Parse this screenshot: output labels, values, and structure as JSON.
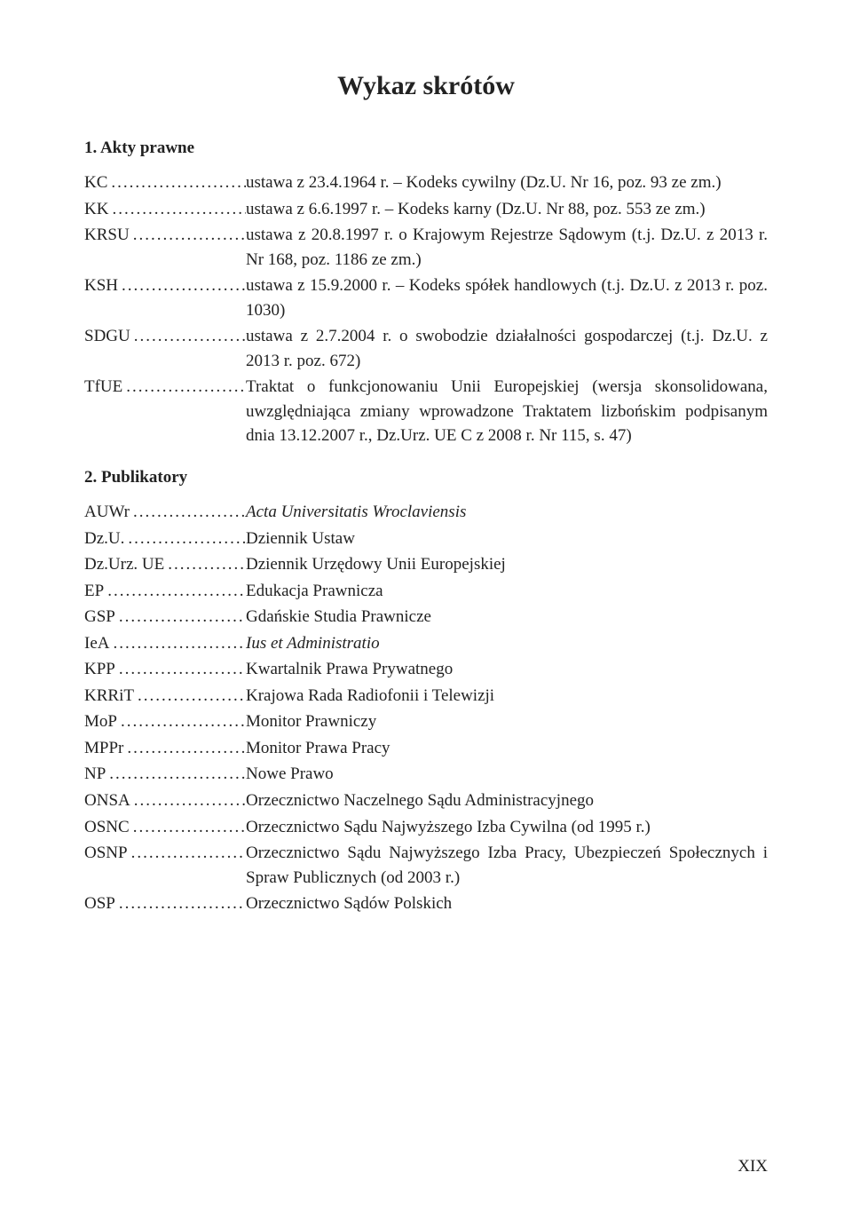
{
  "title": "Wykaz skrótów",
  "sections": [
    {
      "heading": "1. Akty prawne",
      "entries": [
        {
          "abbr": "KC",
          "def": "ustawa z 23.4.1964 r. – Kodeks cywilny (Dz.U. Nr 16, poz. 93 ze zm.)"
        },
        {
          "abbr": "KK",
          "def": "ustawa z 6.6.1997 r. – Kodeks karny (Dz.U. Nr 88, poz. 553 ze zm.)"
        },
        {
          "abbr": "KRSU",
          "def": "ustawa z 20.8.1997 r. o Krajowym Rejestrze Sądowym (t.j. Dz.U. z 2013 r. Nr 168, poz. 1186 ze zm.)"
        },
        {
          "abbr": "KSH",
          "def": "ustawa z 15.9.2000 r. – Kodeks spółek handlowych (t.j. Dz.U. z 2013 r. poz. 1030)"
        },
        {
          "abbr": "SDGU",
          "def": "ustawa z 2.7.2004 r. o swobodzie działalności gospodarczej (t.j. Dz.U. z 2013 r. poz. 672)"
        },
        {
          "abbr": "TfUE",
          "def": "Traktat o funkcjonowaniu Unii Europejskiej (wersja skonsolidowana, uwzględniająca zmiany wprowadzone Traktatem lizbońskim podpisanym dnia 13.12.2007 r., Dz.Urz. UE C z 2008 r. Nr 115, s. 47)"
        }
      ]
    },
    {
      "heading": "2. Publikatory",
      "entries": [
        {
          "abbr": "AUWr",
          "def": "Acta Universitatis Wroclaviensis",
          "italic": true
        },
        {
          "abbr": "Dz.U.",
          "def": "Dziennik Ustaw"
        },
        {
          "abbr": "Dz.Urz. UE",
          "def": "Dziennik Urzędowy Unii Europejskiej"
        },
        {
          "abbr": "EP",
          "def": "Edukacja Prawnicza"
        },
        {
          "abbr": "GSP",
          "def": "Gdańskie Studia Prawnicze"
        },
        {
          "abbr": "IeA",
          "def": "Ius et Administratio",
          "italic": true
        },
        {
          "abbr": "KPP",
          "def": "Kwartalnik Prawa Prywatnego"
        },
        {
          "abbr": "KRRiT",
          "def": "Krajowa Rada Radiofonii i Telewizji"
        },
        {
          "abbr": "MoP",
          "def": "Monitor Prawniczy"
        },
        {
          "abbr": "MPPr",
          "def": "Monitor Prawa Pracy"
        },
        {
          "abbr": "NP",
          "def": "Nowe Prawo"
        },
        {
          "abbr": "ONSA",
          "def": "Orzecznictwo Naczelnego Sądu Administracyjnego"
        },
        {
          "abbr": "OSNC",
          "def": "Orzecznictwo Sądu Najwyższego Izba Cywilna (od 1995 r.)"
        },
        {
          "abbr": "OSNP",
          "def": "Orzecznictwo Sądu Najwyższego Izba Pracy, Ubezpieczeń Społecznych i Spraw Publicznych (od 2003 r.)"
        },
        {
          "abbr": "OSP",
          "def": "Orzecznictwo Sądów Polskich"
        }
      ]
    }
  ],
  "pageNumber": "XIX",
  "dotsFill": ".................................",
  "colors": {
    "text": "#222222",
    "background": "#ffffff"
  },
  "typography": {
    "title_fontsize": 30,
    "body_fontsize": 19,
    "font_family": "Minion Pro, Georgia, Times New Roman, serif"
  }
}
